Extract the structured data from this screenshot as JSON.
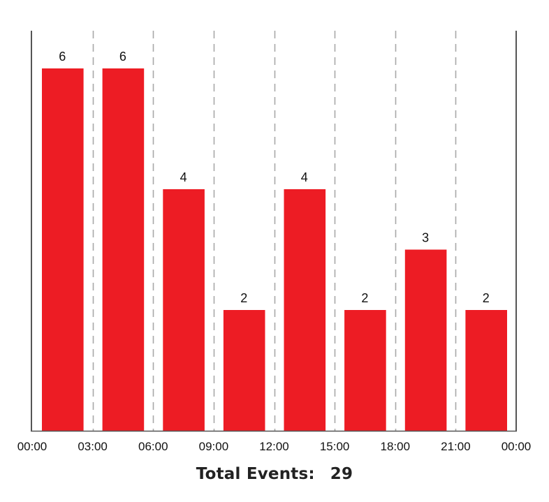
{
  "chart_data": {
    "type": "bar",
    "categories": [
      "00:00",
      "03:00",
      "06:00",
      "09:00",
      "12:00",
      "15:00",
      "18:00",
      "21:00"
    ],
    "values": [
      6,
      6,
      4,
      2,
      4,
      2,
      3,
      2
    ],
    "x_tick_labels": [
      "00:00",
      "03:00",
      "06:00",
      "09:00",
      "12:00",
      "15:00",
      "18:00",
      "21:00",
      "00:00"
    ],
    "ylim": [
      0,
      7
    ],
    "bar_color": "#ed1c24",
    "grid": "vertical dashed",
    "legend": "none"
  },
  "summary": {
    "label": "Total Events:",
    "value": "29"
  }
}
